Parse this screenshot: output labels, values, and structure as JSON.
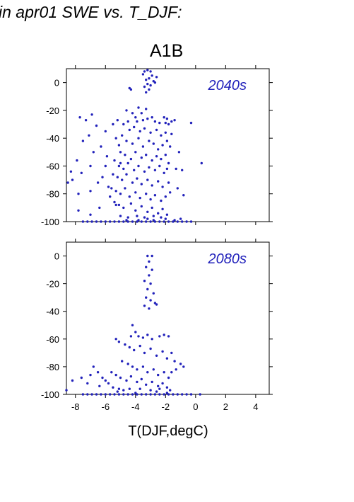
{
  "page": {
    "title": "in apr01 SWE vs. T_DJF:",
    "scenario": "A1B"
  },
  "chart_data": [
    {
      "type": "scatter",
      "panel_label": "2040s",
      "xlabel": "T(DJF,degC)",
      "ylabel": "",
      "xlim": [
        -8.6,
        4.9
      ],
      "ylim": [
        -100,
        10
      ],
      "xticks": [
        -8,
        -6,
        -4,
        -2,
        0,
        2,
        4
      ],
      "yticks": [
        0,
        -20,
        -40,
        -60,
        -80,
        -100
      ],
      "marker_color": "#2222bb",
      "points": [
        [
          -3.4,
          8
        ],
        [
          -3.2,
          9
        ],
        [
          -3.0,
          8
        ],
        [
          -3.5,
          6
        ],
        [
          -2.9,
          5
        ],
        [
          -3.1,
          3
        ],
        [
          -3.3,
          2
        ],
        [
          -2.8,
          1
        ],
        [
          -3.2,
          -1
        ],
        [
          -3.0,
          -2
        ],
        [
          -3.4,
          -3
        ],
        [
          -3.1,
          -5
        ],
        [
          -3.3,
          -7
        ],
        [
          -2.6,
          4
        ],
        [
          -2.7,
          0
        ],
        [
          -4.4,
          -4
        ],
        [
          -4.3,
          -5
        ],
        [
          -0.3,
          -29
        ],
        [
          0.4,
          -58
        ],
        [
          -1.4,
          -27
        ],
        [
          -1.6,
          -37
        ],
        [
          -1.1,
          -50
        ],
        [
          -1.3,
          -62
        ],
        [
          -0.9,
          -63
        ],
        [
          -1.7,
          -79
        ],
        [
          -0.8,
          -81
        ],
        [
          -1.2,
          -76
        ],
        [
          -7.7,
          -25
        ],
        [
          -7.3,
          -27
        ],
        [
          -6.9,
          -23
        ],
        [
          -6.6,
          -31
        ],
        [
          -7.1,
          -38
        ],
        [
          -7.5,
          -42
        ],
        [
          -6.3,
          -46
        ],
        [
          -6.0,
          -35
        ],
        [
          -5.5,
          -30
        ],
        [
          -5.9,
          -53
        ],
        [
          -6.8,
          -50
        ],
        [
          -7.0,
          -60
        ],
        [
          -7.6,
          -65
        ],
        [
          -8.2,
          -70
        ],
        [
          -7.9,
          -56
        ],
        [
          -8.5,
          -72
        ],
        [
          -7.8,
          -80
        ],
        [
          -7.0,
          -78
        ],
        [
          -6.5,
          -72
        ],
        [
          -6.2,
          -68
        ],
        [
          -5.8,
          -75
        ],
        [
          -5.7,
          -82
        ],
        [
          -5.3,
          -88
        ],
        [
          -6.4,
          -90
        ],
        [
          -7.0,
          -95
        ],
        [
          -7.8,
          -92
        ],
        [
          -8.3,
          -64
        ],
        [
          -6.0,
          -60
        ],
        [
          -5.1,
          -45
        ],
        [
          -5.0,
          -58
        ],
        [
          -4.6,
          -20
        ],
        [
          -4.2,
          -22
        ],
        [
          -3.8,
          -18
        ],
        [
          -3.6,
          -22
        ],
        [
          -3.3,
          -19
        ],
        [
          -4.0,
          -25
        ],
        [
          -3.9,
          -28
        ],
        [
          -3.5,
          -27
        ],
        [
          -3.2,
          -26
        ],
        [
          -2.9,
          -25
        ],
        [
          -2.7,
          -28
        ],
        [
          -2.4,
          -29
        ],
        [
          -2.1,
          -25
        ],
        [
          -1.9,
          -26
        ],
        [
          -1.8,
          -30
        ],
        [
          -2.0,
          -29
        ],
        [
          -1.6,
          -28
        ],
        [
          -4.5,
          -28
        ],
        [
          -5.2,
          -27
        ],
        [
          -4.8,
          -30
        ],
        [
          -4.4,
          -34
        ],
        [
          -4.1,
          -32
        ],
        [
          -3.7,
          -35
        ],
        [
          -3.4,
          -33
        ],
        [
          -3.0,
          -36
        ],
        [
          -2.6,
          -34
        ],
        [
          -2.3,
          -38
        ],
        [
          -2.0,
          -36
        ],
        [
          -4.9,
          -38
        ],
        [
          -5.3,
          -40
        ],
        [
          -4.6,
          -42
        ],
        [
          -4.2,
          -44
        ],
        [
          -3.8,
          -40
        ],
        [
          -3.5,
          -46
        ],
        [
          -3.1,
          -42
        ],
        [
          -2.8,
          -44
        ],
        [
          -2.5,
          -48
        ],
        [
          -2.2,
          -45
        ],
        [
          -1.9,
          -42
        ],
        [
          -1.7,
          -46
        ],
        [
          -5.0,
          -50
        ],
        [
          -4.7,
          -52
        ],
        [
          -4.3,
          -55
        ],
        [
          -4.0,
          -50
        ],
        [
          -3.6,
          -54
        ],
        [
          -3.3,
          -52
        ],
        [
          -2.9,
          -56
        ],
        [
          -2.6,
          -53
        ],
        [
          -2.3,
          -55
        ],
        [
          -2.0,
          -52
        ],
        [
          -1.8,
          -58
        ],
        [
          -5.4,
          -56
        ],
        [
          -5.1,
          -60
        ],
        [
          -4.8,
          -62
        ],
        [
          -4.5,
          -58
        ],
        [
          -4.1,
          -63
        ],
        [
          -3.8,
          -60
        ],
        [
          -3.4,
          -64
        ],
        [
          -3.1,
          -61
        ],
        [
          -2.7,
          -63
        ],
        [
          -2.4,
          -60
        ],
        [
          -2.1,
          -65
        ],
        [
          -1.9,
          -62
        ],
        [
          -5.5,
          -66
        ],
        [
          -5.2,
          -68
        ],
        [
          -4.9,
          -70
        ],
        [
          -4.6,
          -66
        ],
        [
          -4.2,
          -72
        ],
        [
          -3.9,
          -69
        ],
        [
          -3.6,
          -73
        ],
        [
          -3.2,
          -70
        ],
        [
          -2.9,
          -74
        ],
        [
          -2.5,
          -71
        ],
        [
          -2.2,
          -75
        ],
        [
          -1.8,
          -72
        ],
        [
          -5.6,
          -76
        ],
        [
          -5.3,
          -78
        ],
        [
          -5.0,
          -80
        ],
        [
          -4.7,
          -76
        ],
        [
          -4.4,
          -82
        ],
        [
          -4.0,
          -79
        ],
        [
          -3.7,
          -83
        ],
        [
          -3.3,
          -80
        ],
        [
          -3.0,
          -84
        ],
        [
          -2.7,
          -81
        ],
        [
          -2.3,
          -85
        ],
        [
          -2.0,
          -82
        ],
        [
          -5.4,
          -86
        ],
        [
          -5.1,
          -88
        ],
        [
          -4.8,
          -90
        ],
        [
          -4.3,
          -87
        ],
        [
          -4.0,
          -92
        ],
        [
          -3.6,
          -89
        ],
        [
          -3.2,
          -93
        ],
        [
          -2.9,
          -90
        ],
        [
          -2.5,
          -94
        ],
        [
          -2.2,
          -91
        ],
        [
          -1.9,
          -95
        ],
        [
          -5.0,
          -96
        ],
        [
          -4.5,
          -97
        ],
        [
          -3.9,
          -96
        ],
        [
          -3.4,
          -97
        ],
        [
          -2.8,
          -96
        ],
        [
          -2.3,
          -97
        ],
        [
          -7.5,
          -100
        ],
        [
          -7.2,
          -100
        ],
        [
          -6.9,
          -100
        ],
        [
          -6.6,
          -100
        ],
        [
          -6.3,
          -100
        ],
        [
          -6.0,
          -100
        ],
        [
          -5.7,
          -100
        ],
        [
          -5.4,
          -100
        ],
        [
          -5.1,
          -100
        ],
        [
          -4.8,
          -100
        ],
        [
          -4.5,
          -100
        ],
        [
          -4.2,
          -100
        ],
        [
          -3.9,
          -100
        ],
        [
          -3.6,
          -100
        ],
        [
          -3.3,
          -100
        ],
        [
          -3.0,
          -100
        ],
        [
          -2.7,
          -100
        ],
        [
          -2.4,
          -100
        ],
        [
          -2.1,
          -100
        ],
        [
          -1.8,
          -100
        ],
        [
          -1.5,
          -100
        ],
        [
          -1.2,
          -100
        ],
        [
          -0.9,
          -100
        ],
        [
          -0.6,
          -100
        ],
        [
          -0.3,
          -100
        ],
        [
          -3.2,
          -98
        ],
        [
          -2.8,
          -99
        ],
        [
          -2.0,
          -98
        ],
        [
          -1.4,
          -99
        ],
        [
          -3.8,
          -99
        ],
        [
          -4.6,
          -99
        ],
        [
          -1.0,
          -98
        ]
      ]
    },
    {
      "type": "scatter",
      "panel_label": "2080s",
      "xlabel": "T(DJF,degC)",
      "ylabel": "",
      "xlim": [
        -8.6,
        4.9
      ],
      "ylim": [
        -100,
        10
      ],
      "xticks": [
        -8,
        -6,
        -4,
        -2,
        0,
        2,
        4
      ],
      "yticks": [
        0,
        -20,
        -40,
        -60,
        -80,
        -100
      ],
      "marker_color": "#2222bb",
      "points": [
        [
          -3.2,
          0
        ],
        [
          -2.9,
          0
        ],
        [
          -3.1,
          -4
        ],
        [
          -3.3,
          -8
        ],
        [
          -2.9,
          -10
        ],
        [
          -3.1,
          -14
        ],
        [
          -3.4,
          -18
        ],
        [
          -3.0,
          -20
        ],
        [
          -3.2,
          -24
        ],
        [
          -2.8,
          -27
        ],
        [
          -3.3,
          -30
        ],
        [
          -3.0,
          -32
        ],
        [
          -2.7,
          -34
        ],
        [
          -3.4,
          -36
        ],
        [
          -3.1,
          -38
        ],
        [
          -2.6,
          -35
        ],
        [
          -4.2,
          -50
        ],
        [
          -4.0,
          -55
        ],
        [
          -4.3,
          -58
        ],
        [
          -3.8,
          -58
        ],
        [
          -3.5,
          -59
        ],
        [
          -3.2,
          -57
        ],
        [
          -2.9,
          -60
        ],
        [
          -2.4,
          -58
        ],
        [
          -2.1,
          -57
        ],
        [
          -1.8,
          -58
        ],
        [
          -5.3,
          -60
        ],
        [
          -5.1,
          -62
        ],
        [
          -4.7,
          -64
        ],
        [
          -4.4,
          -66
        ],
        [
          -4.1,
          -68
        ],
        [
          -3.7,
          -65
        ],
        [
          -3.4,
          -70
        ],
        [
          -3.0,
          -67
        ],
        [
          -2.6,
          -72
        ],
        [
          -2.2,
          -69
        ],
        [
          -1.9,
          -74
        ],
        [
          -1.6,
          -70
        ],
        [
          -1.4,
          -76
        ],
        [
          -1.0,
          -78
        ],
        [
          -0.8,
          -80
        ],
        [
          -1.3,
          -82
        ],
        [
          -1.6,
          -84
        ],
        [
          -4.9,
          -76
        ],
        [
          -4.5,
          -78
        ],
        [
          -4.2,
          -80
        ],
        [
          -3.9,
          -82
        ],
        [
          -3.5,
          -80
        ],
        [
          -3.2,
          -84
        ],
        [
          -2.8,
          -82
        ],
        [
          -2.5,
          -86
        ],
        [
          -2.1,
          -84
        ],
        [
          -1.8,
          -88
        ],
        [
          -5.6,
          -84
        ],
        [
          -5.3,
          -86
        ],
        [
          -5.0,
          -88
        ],
        [
          -4.6,
          -90
        ],
        [
          -4.3,
          -87
        ],
        [
          -3.9,
          -91
        ],
        [
          -3.6,
          -89
        ],
        [
          -3.3,
          -93
        ],
        [
          -2.9,
          -91
        ],
        [
          -2.5,
          -94
        ],
        [
          -2.2,
          -92
        ],
        [
          -1.9,
          -95
        ],
        [
          -6.8,
          -80
        ],
        [
          -6.5,
          -84
        ],
        [
          -7.0,
          -86
        ],
        [
          -6.2,
          -88
        ],
        [
          -6.0,
          -90
        ],
        [
          -5.8,
          -92
        ],
        [
          -6.4,
          -94
        ],
        [
          -7.6,
          -88
        ],
        [
          -7.2,
          -92
        ],
        [
          -5.5,
          -95
        ],
        [
          -5.1,
          -96
        ],
        [
          -4.8,
          -97
        ],
        [
          -4.4,
          -96
        ],
        [
          -3.7,
          -96
        ],
        [
          -3.0,
          -97
        ],
        [
          -2.4,
          -96
        ],
        [
          -1.7,
          -97
        ],
        [
          -8.2,
          -90
        ],
        [
          -8.6,
          -97
        ],
        [
          -7.5,
          -100
        ],
        [
          -7.2,
          -100
        ],
        [
          -6.9,
          -100
        ],
        [
          -6.6,
          -100
        ],
        [
          -6.3,
          -100
        ],
        [
          -6.0,
          -100
        ],
        [
          -5.7,
          -100
        ],
        [
          -5.4,
          -100
        ],
        [
          -5.1,
          -100
        ],
        [
          -4.8,
          -100
        ],
        [
          -4.5,
          -100
        ],
        [
          -4.2,
          -100
        ],
        [
          -3.9,
          -100
        ],
        [
          -3.6,
          -100
        ],
        [
          -3.3,
          -100
        ],
        [
          -3.0,
          -100
        ],
        [
          -2.7,
          -100
        ],
        [
          -2.4,
          -100
        ],
        [
          -2.1,
          -100
        ],
        [
          -1.8,
          -100
        ],
        [
          -1.5,
          -100
        ],
        [
          -1.2,
          -100
        ],
        [
          -0.9,
          -100
        ],
        [
          -0.6,
          -100
        ],
        [
          -0.3,
          -100
        ],
        [
          0.3,
          -100
        ],
        [
          -5.2,
          -98
        ],
        [
          -4.0,
          -99
        ],
        [
          -2.6,
          -98
        ],
        [
          -1.9,
          -99
        ]
      ]
    }
  ]
}
